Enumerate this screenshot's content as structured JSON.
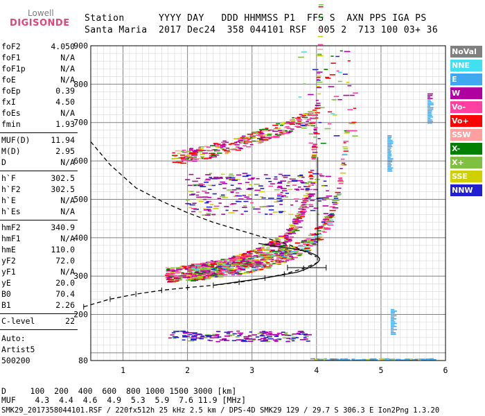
{
  "logo": {
    "line1": "Lowell",
    "line2": "DIGISONDE"
  },
  "header": {
    "labels": "Station      YYYY DAY   DDD HHMMSS P1  FFS S  AXN PPS IGA PS",
    "values": "Santa Maria  2017 Dec24  358 044101 RSF  005 2  713 100 03+ 36"
  },
  "params_group1": [
    {
      "name": "foF2",
      "value": "4.050"
    },
    {
      "name": "foF1",
      "value": "N/A"
    },
    {
      "name": "foF1p",
      "value": "N/A"
    },
    {
      "name": "foE",
      "value": "N/A"
    },
    {
      "name": "foEp",
      "value": "0.39"
    },
    {
      "name": "fxI",
      "value": "4.50"
    },
    {
      "name": "foEs",
      "value": "N/A"
    },
    {
      "name": "fmin",
      "value": "1.93"
    }
  ],
  "params_group2": [
    {
      "name": "MUF(D)",
      "value": "11.94"
    },
    {
      "name": "M(D)",
      "value": "2.95"
    },
    {
      "name": "D",
      "value": "N/A"
    }
  ],
  "params_group3": [
    {
      "name": "h`F",
      "value": "302.5"
    },
    {
      "name": "h`F2",
      "value": "302.5"
    },
    {
      "name": "h`E",
      "value": "N/A"
    },
    {
      "name": "h`Es",
      "value": "N/A"
    }
  ],
  "params_group4": [
    {
      "name": "hmF2",
      "value": "340.9"
    },
    {
      "name": "hmF1",
      "value": "N/A"
    },
    {
      "name": "hmE",
      "value": "110.0"
    },
    {
      "name": "yF2",
      "value": "72.0"
    },
    {
      "name": "yF1",
      "value": "N/A"
    },
    {
      "name": "yE",
      "value": "20.0"
    },
    {
      "name": "B0",
      "value": "70.4"
    },
    {
      "name": "B1",
      "value": "2.26"
    }
  ],
  "params_group5": [
    {
      "name": "C-level",
      "value": "22"
    }
  ],
  "scaling": {
    "label": "Auto:",
    "name": "Artist5",
    "version": "500200"
  },
  "legend": [
    {
      "label": "NoVal",
      "color": "#808080"
    },
    {
      "label": "NNE",
      "color": "#40e0f0"
    },
    {
      "label": "E",
      "color": "#40a8f0"
    },
    {
      "label": "W",
      "color": "#b000a0"
    },
    {
      "label": "Vo-",
      "color": "#ff40a0"
    },
    {
      "label": "Vo+",
      "color": "#ff0000"
    },
    {
      "label": "SSW",
      "color": "#ffa0a0"
    },
    {
      "label": "X-",
      "color": "#008000"
    },
    {
      "label": "X+",
      "color": "#80c040"
    },
    {
      "label": "SSE",
      "color": "#d0d000"
    },
    {
      "label": "NNW",
      "color": "#2020d0"
    }
  ],
  "footer": {
    "distance_row": "D     100  200  400  600  800 1000 1500 3000 [km]",
    "muf_row": "MUF    4.3  4.4  4.6  4.9  5.3  5.9  7.6 11.9 [MHz]",
    "info_line": "SMK29_2017358044101.RSF / 220fx512h 25 kHz 2.5 km / DPS-4D SMK29 129 / 29.7 S 306.3 E Ion2Png 1.3.20"
  },
  "chart_data": {
    "type": "scatter",
    "xlabel": "",
    "ylabel": "",
    "xlim": [
      0.5,
      6.0
    ],
    "ylim": [
      80,
      900
    ],
    "x_ticks": [
      1,
      2,
      3,
      4,
      5,
      6
    ],
    "y_ticks": [
      80,
      200,
      300,
      400,
      500,
      600,
      700,
      800,
      900
    ],
    "y_tick_labels": [
      "80",
      "200",
      "300",
      "400",
      "500",
      "600",
      "700",
      "800",
      "900"
    ],
    "grid": true,
    "fitted_profile": {
      "freq_mhz": [
        0.39,
        0.8,
        1.2,
        1.6,
        2.0,
        2.4,
        2.8,
        3.2,
        3.5,
        3.8,
        4.0,
        4.05
      ],
      "height_km": [
        220,
        240,
        253,
        263,
        270,
        276,
        284,
        295,
        305,
        320,
        334,
        340.9
      ]
    },
    "dashed_profile": {
      "freq_mhz": [
        0.5,
        0.8,
        1.2,
        1.6,
        2.0,
        2.4,
        2.8,
        3.2,
        3.6,
        4.0
      ],
      "height_km": [
        650,
        590,
        530,
        495,
        465,
        440,
        420,
        400,
        380,
        350
      ]
    },
    "trace_segments": [
      {
        "name": "F2 O-trace",
        "freq_range": [
          1.65,
          4.05
        ],
        "height_range": [
          295,
          600
        ]
      },
      {
        "name": "F2 X-trace",
        "freq_range": [
          1.9,
          4.5
        ],
        "height_range": [
          300,
          660
        ]
      },
      {
        "name": "2F2 multihop",
        "freq_range": [
          1.75,
          3.95
        ],
        "height_range": [
          600,
          760
        ]
      },
      {
        "name": "Es",
        "freq_range": [
          1.65,
          3.9
        ],
        "height_range": [
          130,
          160
        ]
      }
    ]
  }
}
